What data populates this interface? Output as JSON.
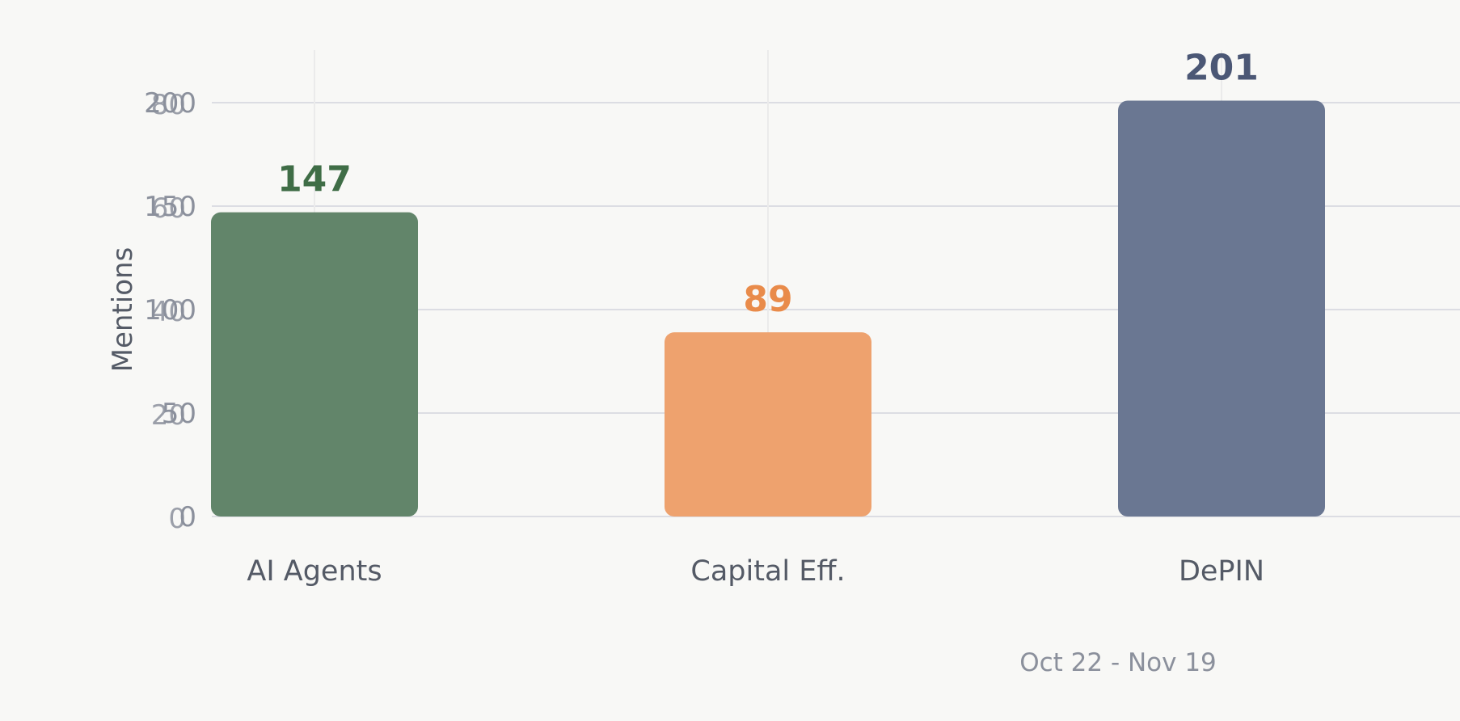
{
  "chart_data": {
    "type": "bar",
    "categories": [
      "AI Agents",
      "Capital Eff.",
      "DePIN"
    ],
    "values": [
      147,
      89,
      201
    ],
    "ylabel": "Mentions",
    "ylim": [
      0,
      200
    ],
    "yticks": [
      0,
      50,
      100,
      150,
      200
    ],
    "yticks_overlay": [
      0,
      20,
      40,
      60,
      80
    ],
    "grid": true,
    "bar_colors": [
      "#62856a",
      "#eea26e",
      "#6a7792"
    ],
    "value_label_colors": [
      "#3f6d46",
      "#e98b4a",
      "#4b5775"
    ],
    "date_range": "Oct 22 - Nov 19"
  }
}
